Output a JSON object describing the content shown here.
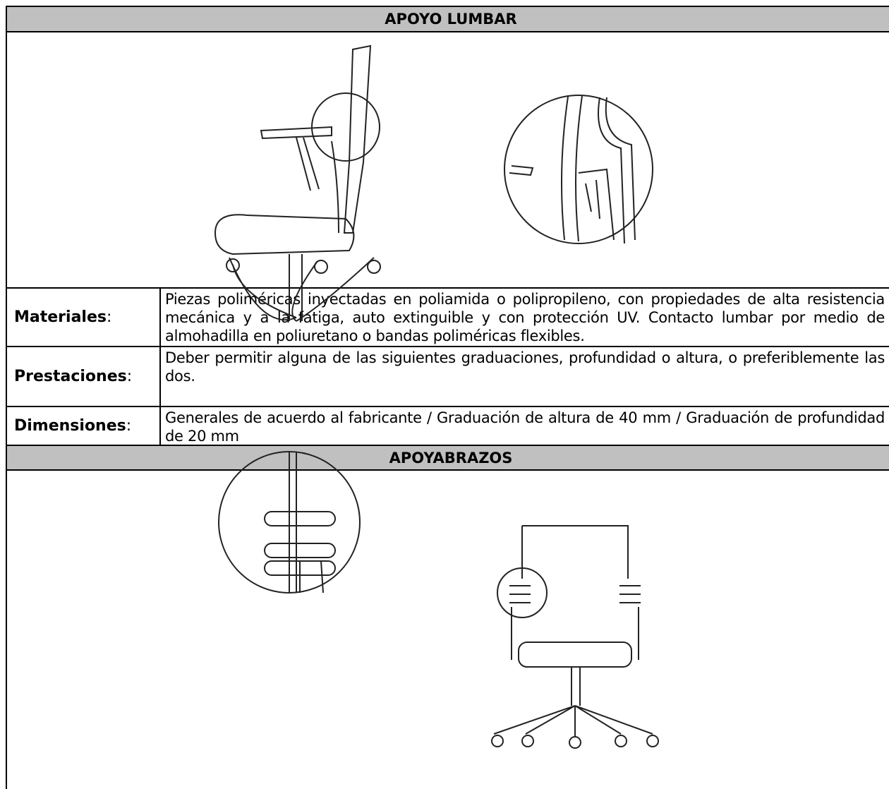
{
  "sections": [
    {
      "title": "APOYO LUMBAR",
      "rows": [
        {
          "label": "Materiales",
          "suffix": ":",
          "text": "Piezas poliméricas inyectadas en  poliamida o polipropileno, con propiedades de alta resistencia mecánica y a la fatiga, auto extinguible y con protección UV. Contacto lumbar por medio de almohadilla en poliuretano o bandas poliméricas flexibles."
        },
        {
          "label": "Prestaciones",
          "suffix": ":",
          "text": "Deber permitir alguna de las siguientes graduaciones, profundidad o altura, o preferiblemente las dos."
        },
        {
          "label": "Dimensiones",
          "suffix": ":",
          "text": "Generales de acuerdo al fabricante / Graduación de altura de 40 mm / Graduación de profundidad de 20 mm"
        }
      ]
    },
    {
      "title": "APOYABRAZOS"
    }
  ]
}
